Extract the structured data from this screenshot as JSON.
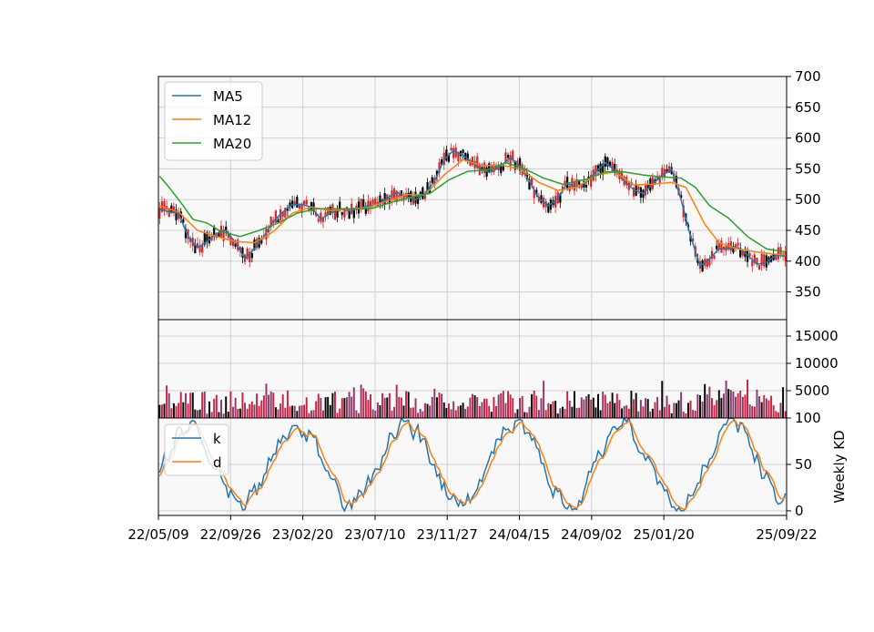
{
  "chart_data": [
    {
      "type": "candlestick",
      "title": "",
      "y_axis_position": "right",
      "ylim": [
        305,
        700
      ],
      "yticks": [
        350,
        400,
        450,
        500,
        550,
        600,
        650,
        700
      ],
      "legend_position": "top-left",
      "grid": true,
      "colors": {
        "up": "#d62728",
        "down": "#000000",
        "MA5": "#1f77b4",
        "MA12": "#ff7f0e",
        "MA20": "#2ca02c"
      },
      "series_labels": [
        "MA5",
        "MA12",
        "MA20"
      ],
      "ma_anchors": {
        "MA5": [
          [
            0,
            485
          ],
          [
            4,
            480
          ],
          [
            8,
            478
          ],
          [
            12,
            440
          ],
          [
            16,
            422
          ],
          [
            20,
            432
          ],
          [
            24,
            445
          ],
          [
            28,
            450
          ],
          [
            32,
            430
          ],
          [
            36,
            404
          ],
          [
            40,
            420
          ],
          [
            44,
            440
          ],
          [
            48,
            465
          ],
          [
            52,
            480
          ],
          [
            56,
            492
          ],
          [
            60,
            492
          ],
          [
            64,
            488
          ],
          [
            68,
            468
          ],
          [
            72,
            478
          ],
          [
            76,
            484
          ],
          [
            80,
            482
          ],
          [
            84,
            485
          ],
          [
            88,
            490
          ],
          [
            92,
            492
          ],
          [
            96,
            502
          ],
          [
            100,
            512
          ],
          [
            104,
            505
          ],
          [
            108,
            500
          ],
          [
            112,
            510
          ],
          [
            116,
            530
          ],
          [
            120,
            565
          ],
          [
            124,
            580
          ],
          [
            128,
            572
          ],
          [
            132,
            560
          ],
          [
            136,
            548
          ],
          [
            140,
            545
          ],
          [
            144,
            555
          ],
          [
            148,
            568
          ],
          [
            152,
            555
          ],
          [
            156,
            530
          ],
          [
            160,
            502
          ],
          [
            164,
            490
          ],
          [
            168,
            502
          ],
          [
            172,
            526
          ],
          [
            176,
            520
          ],
          [
            180,
            528
          ],
          [
            184,
            545
          ],
          [
            188,
            560
          ],
          [
            192,
            548
          ],
          [
            196,
            530
          ],
          [
            200,
            516
          ],
          [
            204,
            510
          ],
          [
            208,
            525
          ],
          [
            212,
            540
          ],
          [
            216,
            550
          ],
          [
            220,
            500
          ],
          [
            224,
            440
          ],
          [
            228,
            392
          ],
          [
            232,
            404
          ],
          [
            236,
            420
          ],
          [
            240,
            420
          ],
          [
            244,
            422
          ],
          [
            248,
            410
          ],
          [
            252,
            395
          ],
          [
            256,
            398
          ],
          [
            260,
            410
          ],
          [
            264,
            408
          ]
        ],
        "MA12": [
          [
            0,
            490
          ],
          [
            8,
            480
          ],
          [
            16,
            450
          ],
          [
            24,
            440
          ],
          [
            32,
            432
          ],
          [
            40,
            430
          ],
          [
            48,
            448
          ],
          [
            56,
            478
          ],
          [
            64,
            488
          ],
          [
            72,
            482
          ],
          [
            80,
            485
          ],
          [
            88,
            487
          ],
          [
            96,
            498
          ],
          [
            104,
            508
          ],
          [
            112,
            508
          ],
          [
            120,
            540
          ],
          [
            128,
            565
          ],
          [
            136,
            555
          ],
          [
            144,
            556
          ],
          [
            152,
            550
          ],
          [
            160,
            528
          ],
          [
            168,
            515
          ],
          [
            176,
            520
          ],
          [
            184,
            540
          ],
          [
            192,
            545
          ],
          [
            200,
            524
          ],
          [
            208,
            525
          ],
          [
            216,
            528
          ],
          [
            222,
            520
          ],
          [
            230,
            460
          ],
          [
            236,
            430
          ],
          [
            244,
            420
          ],
          [
            252,
            415
          ],
          [
            258,
            412
          ],
          [
            264,
            410
          ]
        ],
        "MA20": [
          [
            0,
            538
          ],
          [
            4,
            520
          ],
          [
            10,
            490
          ],
          [
            14,
            468
          ],
          [
            20,
            462
          ],
          [
            26,
            448
          ],
          [
            34,
            440
          ],
          [
            42,
            450
          ],
          [
            50,
            462
          ],
          [
            58,
            478
          ],
          [
            66,
            485
          ],
          [
            74,
            485
          ],
          [
            82,
            485
          ],
          [
            90,
            486
          ],
          [
            98,
            496
          ],
          [
            106,
            504
          ],
          [
            114,
            510
          ],
          [
            122,
            532
          ],
          [
            130,
            546
          ],
          [
            138,
            548
          ],
          [
            146,
            560
          ],
          [
            154,
            550
          ],
          [
            162,
            535
          ],
          [
            170,
            525
          ],
          [
            180,
            533
          ],
          [
            188,
            545
          ],
          [
            196,
            545
          ],
          [
            204,
            540
          ],
          [
            212,
            537
          ],
          [
            220,
            535
          ],
          [
            226,
            520
          ],
          [
            232,
            490
          ],
          [
            240,
            470
          ],
          [
            248,
            440
          ],
          [
            256,
            420
          ],
          [
            264,
            415
          ]
        ]
      }
    },
    {
      "type": "bar",
      "ylim": [
        0,
        18000
      ],
      "yticks": [
        5000,
        10000,
        15000
      ],
      "y_axis_position": "right",
      "grid": true,
      "colors": {
        "up": "#cc2244",
        "down": "#000000",
        "mixed": "#8b3a6b"
      }
    },
    {
      "type": "line",
      "ylabel": "Weekly KD",
      "ylim": [
        -5,
        100
      ],
      "yticks": [
        0,
        50,
        100
      ],
      "y_axis_position": "right",
      "legend_position": "top-left",
      "grid": true,
      "series_labels": [
        "k",
        "d"
      ],
      "colors": {
        "k": "#1f77b4",
        "d": "#ff7f0e"
      },
      "x_tick_labels": [
        "22/05/09",
        "22/09/26",
        "23/02/20",
        "23/07/10",
        "23/11/27",
        "24/04/15",
        "24/09/02",
        "25/01/20",
        "25/09/22"
      ],
      "x_tick_weeks": [
        0,
        20,
        40,
        60,
        80,
        100,
        120,
        140,
        174
      ],
      "x_range_weeks": [
        0,
        174
      ]
    }
  ]
}
